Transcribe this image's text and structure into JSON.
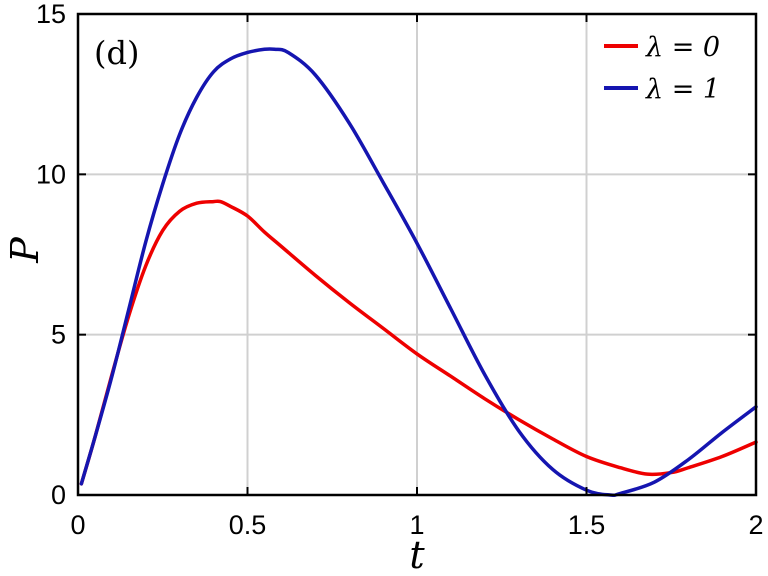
{
  "chart_data": {
    "type": "line",
    "panel_label": "(d)",
    "xlabel": "t",
    "ylabel": "P",
    "xlim": [
      0,
      2
    ],
    "ylim": [
      0,
      15
    ],
    "xticks": [
      0,
      0.5,
      1,
      1.5,
      2
    ],
    "xtick_labels": [
      "0",
      "0.5",
      "1",
      "1.5",
      "2"
    ],
    "yticks": [
      0,
      5,
      10,
      15
    ],
    "ytick_labels": [
      "0",
      "5",
      "10",
      "15"
    ],
    "grid": true,
    "legend_position": "top-right",
    "series": [
      {
        "name": "λ = 0",
        "color": "#ee0000",
        "x": [
          0.01,
          0.05,
          0.1,
          0.15,
          0.2,
          0.25,
          0.3,
          0.35,
          0.4,
          0.42,
          0.45,
          0.5,
          0.55,
          0.6,
          0.7,
          0.8,
          0.9,
          1.0,
          1.1,
          1.2,
          1.3,
          1.4,
          1.5,
          1.6,
          1.68,
          1.75,
          1.8,
          1.9,
          2.0
        ],
        "y": [
          0.35,
          1.8,
          3.75,
          5.6,
          7.15,
          8.25,
          8.85,
          9.1,
          9.15,
          9.15,
          9.0,
          8.7,
          8.2,
          7.75,
          6.85,
          6.0,
          5.2,
          4.4,
          3.7,
          3.0,
          2.35,
          1.75,
          1.2,
          0.85,
          0.65,
          0.7,
          0.85,
          1.2,
          1.65
        ]
      },
      {
        "name": "λ = 1",
        "color": "#1515b0",
        "x": [
          0.01,
          0.05,
          0.1,
          0.15,
          0.2,
          0.25,
          0.3,
          0.35,
          0.4,
          0.45,
          0.5,
          0.55,
          0.58,
          0.62,
          0.7,
          0.8,
          0.9,
          1.0,
          1.1,
          1.2,
          1.3,
          1.4,
          1.5,
          1.57,
          1.6,
          1.7,
          1.8,
          1.9,
          2.0
        ],
        "y": [
          0.35,
          1.8,
          3.7,
          5.8,
          7.9,
          9.7,
          11.25,
          12.4,
          13.2,
          13.6,
          13.8,
          13.9,
          13.9,
          13.8,
          13.1,
          11.6,
          9.75,
          7.85,
          5.8,
          3.75,
          2.0,
          0.8,
          0.15,
          0.0,
          0.05,
          0.4,
          1.1,
          1.95,
          2.75
        ]
      }
    ]
  }
}
